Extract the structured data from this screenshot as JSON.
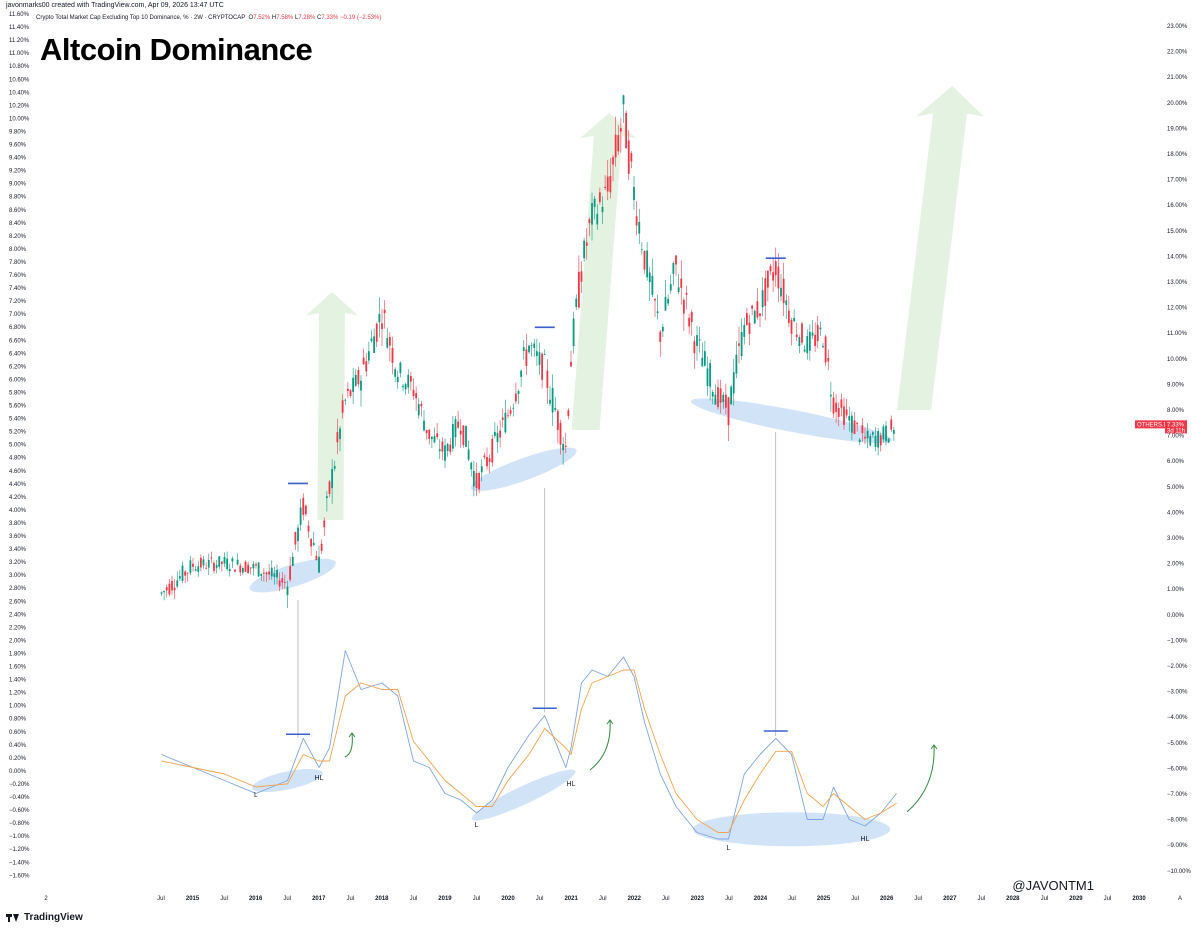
{
  "header": {
    "created_by": "javonmarks00 created with TradingView.com, Apr 09, 2026 13:47 UTC",
    "symbol_description": "Crypto Total Market Cap Excluding Top 10 Dominance, % · 2W · CRYPTOCAP",
    "ohlc": {
      "o_label": "O",
      "o": "7.52%",
      "h_label": "H",
      "h": "7.58%",
      "l_label": "L",
      "l": "7.28%",
      "c_label": "C",
      "c": "7.33%",
      "change": "−0.19 (−2.53%)"
    }
  },
  "title": "Altcoin Dominance",
  "handle": "@JAVONTM1",
  "branding": "TradingView",
  "price_tag": {
    "symbol": "OTHERS.D",
    "value": "7.33%",
    "countdown": "3d 11h"
  },
  "colors": {
    "up": "#089981",
    "down": "#f23645",
    "accent_line": "#3a5fcd",
    "ellipse": "#c6dcf5",
    "arrow_fill": "#dff0dd",
    "signal": "#f5a24b",
    "main": "#7ea4e0"
  },
  "chart_data": [
    {
      "type": "line",
      "name": "price",
      "unit": "%",
      "y_axis_right": [
        "23.00%",
        "22.00%",
        "21.00%",
        "20.00%",
        "19.00%",
        "18.00%",
        "17.00%",
        "16.00%",
        "15.00%",
        "14.00%",
        "13.00%",
        "12.00%",
        "11.00%",
        "10.00%",
        "9.00%",
        "8.00%",
        "7.00%",
        "6.00%",
        "5.00%",
        "4.00%",
        "3.00%",
        "2.00%",
        "1.00%",
        "0.00%",
        "−1.00%",
        "−2.00%",
        "−3.00%",
        "−4.00%",
        "−5.00%",
        "−6.00%",
        "−7.00%",
        "−8.00%",
        "−9.00%",
        "−10.00%"
      ],
      "x": [
        "2014-07",
        "2015-01",
        "2015-07",
        "2016-01",
        "2016-07",
        "2016-10",
        "2017-01",
        "2017-03",
        "2017-06",
        "2017-09",
        "2018-01",
        "2018-04",
        "2018-07",
        "2018-10",
        "2019-01",
        "2019-04",
        "2019-07",
        "2019-10",
        "2020-01",
        "2020-05",
        "2020-08",
        "2020-12",
        "2021-01",
        "2021-03",
        "2021-05",
        "2021-08",
        "2021-11",
        "2022-01",
        "2022-03",
        "2022-06",
        "2022-09",
        "2023-01",
        "2023-05",
        "2023-07",
        "2023-10",
        "2024-01",
        "2024-04",
        "2024-07",
        "2024-10",
        "2025-01",
        "2025-03",
        "2025-06",
        "2025-09",
        "2025-12",
        "2026-03"
      ],
      "y": [
        0.8,
        1.9,
        2.0,
        1.8,
        1.2,
        4.2,
        2.0,
        4.8,
        8.3,
        9.3,
        11.8,
        9.5,
        8.8,
        7.0,
        6.3,
        7.6,
        5.1,
        6.4,
        7.8,
        10.5,
        9.5,
        6.5,
        10.0,
        13.5,
        15.5,
        16.5,
        19.5,
        16.5,
        14.0,
        11.0,
        13.5,
        10.5,
        8.5,
        8.0,
        11.2,
        12.0,
        13.6,
        11.5,
        10.5,
        11.0,
        8.3,
        7.6,
        6.8,
        6.9,
        7.33
      ],
      "annotations": [
        {
          "type": "top",
          "x": "2016-09",
          "y": 5.1
        },
        {
          "type": "top",
          "x": "2020-08",
          "y": 11.2
        },
        {
          "type": "top",
          "x": "2024-04",
          "y": 13.9
        }
      ]
    },
    {
      "type": "line",
      "name": "oscillator",
      "y_axis_left": [
        "11.60%",
        "11.40%",
        "11.20%",
        "11.00%",
        "10.80%",
        "10.60%",
        "10.40%",
        "10.20%",
        "10.00%",
        "9.80%",
        "9.60%",
        "9.40%",
        "9.20%",
        "9.00%",
        "8.80%",
        "8.60%",
        "8.40%",
        "8.20%",
        "8.00%",
        "7.80%",
        "7.60%",
        "7.40%",
        "7.20%",
        "7.00%",
        "6.80%",
        "6.60%",
        "6.40%",
        "6.20%",
        "6.00%",
        "5.80%",
        "5.60%",
        "5.40%",
        "5.20%",
        "5.00%",
        "4.80%",
        "4.60%",
        "4.40%",
        "4.20%",
        "4.00%",
        "3.80%",
        "3.60%",
        "3.40%",
        "3.20%",
        "3.00%",
        "2.80%",
        "2.60%",
        "2.40%",
        "2.20%",
        "2.00%",
        "1.80%",
        "1.60%",
        "1.40%",
        "1.20%",
        "1.00%",
        "0.80%",
        "0.60%",
        "0.40%",
        "0.20%",
        "0.00%",
        "−0.20%",
        "−0.40%",
        "−0.60%",
        "−0.80%",
        "−1.00%",
        "−1.20%",
        "−1.40%",
        "−1.60%"
      ],
      "x": [
        "2014-07",
        "2015-01",
        "2015-07",
        "2016-01",
        "2016-07",
        "2016-10",
        "2017-01",
        "2017-03",
        "2017-06",
        "2017-09",
        "2018-01",
        "2018-04",
        "2018-07",
        "2018-10",
        "2019-01",
        "2019-04",
        "2019-07",
        "2019-10",
        "2020-01",
        "2020-05",
        "2020-08",
        "2020-12",
        "2021-01",
        "2021-03",
        "2021-05",
        "2021-08",
        "2021-11",
        "2022-01",
        "2022-03",
        "2022-06",
        "2022-09",
        "2023-01",
        "2023-05",
        "2023-07",
        "2023-10",
        "2024-01",
        "2024-04",
        "2024-07",
        "2024-10",
        "2025-01",
        "2025-03",
        "2025-06",
        "2025-09",
        "2025-12",
        "2026-03"
      ],
      "series": [
        {
          "values": [
            0.3,
            0.1,
            -0.1,
            -0.3,
            -0.1,
            0.55,
            0.1,
            0.4,
            1.9,
            1.3,
            1.4,
            1.2,
            0.2,
            0.1,
            -0.3,
            -0.4,
            -0.6,
            -0.4,
            0.1,
            0.6,
            0.9,
            0.1,
            0.4,
            1.4,
            1.6,
            1.5,
            1.8,
            1.5,
            0.8,
            0.0,
            -0.5,
            -0.9,
            -1.0,
            -1.0,
            0.0,
            0.3,
            0.55,
            0.3,
            -0.7,
            -0.7,
            -0.2,
            -0.7,
            -0.8,
            -0.6,
            -0.3
          ]
        },
        {
          "values": [
            0.2,
            0.1,
            0.0,
            -0.2,
            -0.15,
            0.3,
            0.2,
            0.2,
            1.2,
            1.4,
            1.3,
            1.3,
            0.5,
            0.2,
            -0.1,
            -0.3,
            -0.5,
            -0.5,
            -0.1,
            0.3,
            0.7,
            0.4,
            0.3,
            1.0,
            1.4,
            1.5,
            1.6,
            1.6,
            1.0,
            0.3,
            -0.3,
            -0.7,
            -0.9,
            -0.9,
            -0.4,
            0.0,
            0.35,
            0.35,
            -0.3,
            -0.5,
            -0.3,
            -0.5,
            -0.7,
            -0.6,
            -0.45
          ]
        }
      ],
      "labels": [
        {
          "text": "L",
          "x": "2016-01"
        },
        {
          "text": "HL",
          "x": "2017-01"
        },
        {
          "text": "L",
          "x": "2019-07"
        },
        {
          "text": "HL",
          "x": "2021-01"
        },
        {
          "text": "L",
          "x": "2023-07"
        },
        {
          "text": "HL",
          "x": "2025-09"
        }
      ]
    }
  ],
  "x_axis": {
    "ticks": [
      {
        "label": "2",
        "bold": false
      },
      {
        "label": "Jul",
        "bold": false
      },
      {
        "label": "2015",
        "bold": true
      },
      {
        "label": "Jul",
        "bold": false
      },
      {
        "label": "2016",
        "bold": true
      },
      {
        "label": "Jul",
        "bold": false
      },
      {
        "label": "2017",
        "bold": true
      },
      {
        "label": "Jul",
        "bold": false
      },
      {
        "label": "2018",
        "bold": true
      },
      {
        "label": "Jul",
        "bold": false
      },
      {
        "label": "2019",
        "bold": true
      },
      {
        "label": "Jul",
        "bold": false
      },
      {
        "label": "2020",
        "bold": true
      },
      {
        "label": "Jul",
        "bold": false
      },
      {
        "label": "2021",
        "bold": true
      },
      {
        "label": "Jul",
        "bold": false
      },
      {
        "label": "2022",
        "bold": true
      },
      {
        "label": "Jul",
        "bold": false
      },
      {
        "label": "2023",
        "bold": true
      },
      {
        "label": "Jul",
        "bold": false
      },
      {
        "label": "2024",
        "bold": true
      },
      {
        "label": "Jul",
        "bold": false
      },
      {
        "label": "2025",
        "bold": true
      },
      {
        "label": "Jul",
        "bold": false
      },
      {
        "label": "2026",
        "bold": true
      },
      {
        "label": "Jul",
        "bold": false
      },
      {
        "label": "2027",
        "bold": true
      },
      {
        "label": "Jul",
        "bold": false
      },
      {
        "label": "2028",
        "bold": true
      },
      {
        "label": "Jul",
        "bold": false
      },
      {
        "label": "2029",
        "bold": true
      },
      {
        "label": "Jul",
        "bold": false
      },
      {
        "label": "2030",
        "bold": true
      },
      {
        "label": "A",
        "bold": false
      }
    ]
  }
}
